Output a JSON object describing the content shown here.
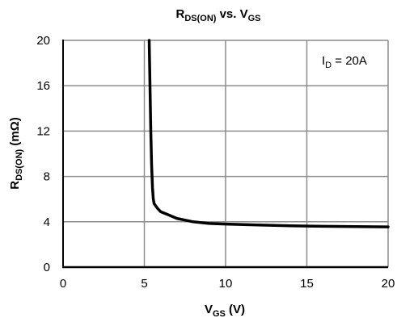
{
  "chart_data": {
    "type": "line",
    "title": {
      "main": "R",
      "sub": "DS(ON)",
      "mid": " vs. V",
      "sub2": "GS"
    },
    "xlabel": {
      "main": "V",
      "sub": "GS",
      "rest": " (V)"
    },
    "ylabel": {
      "main": "R",
      "sub": "DS(ON)",
      "rest": " (mΩ)"
    },
    "annotation": {
      "main": "I",
      "sub": "D",
      "rest": " = 20A"
    },
    "xlim": [
      0,
      20
    ],
    "ylim": [
      0,
      20
    ],
    "xticks": [
      0,
      5,
      10,
      15,
      20
    ],
    "yticks": [
      0,
      4,
      8,
      12,
      16,
      20
    ],
    "grid": true,
    "series": [
      {
        "x": [
          5.3,
          5.35,
          5.4,
          5.45,
          5.5,
          5.55,
          5.6,
          5.8,
          6.0,
          6.5,
          7.0,
          8.0,
          9.0,
          10.0,
          12.0,
          14.0,
          16.0,
          18.0,
          20.0
        ],
        "y": [
          20.0,
          16.0,
          12.0,
          9.0,
          7.0,
          6.0,
          5.6,
          5.2,
          4.9,
          4.6,
          4.3,
          4.0,
          3.85,
          3.8,
          3.72,
          3.65,
          3.6,
          3.57,
          3.55
        ],
        "color": "#000000"
      }
    ]
  }
}
